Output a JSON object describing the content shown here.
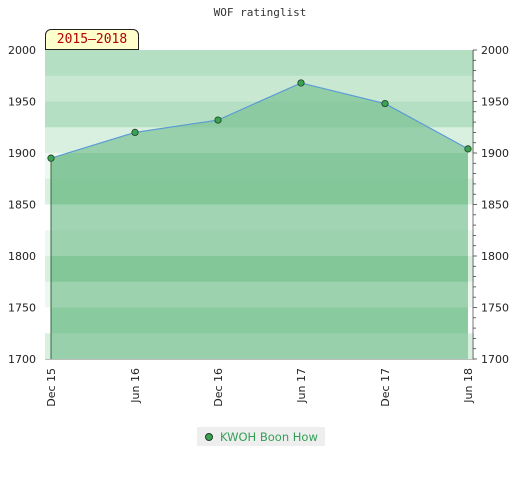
{
  "chart_data": {
    "type": "area",
    "title": "WOF ratinglist",
    "period_label": "2015–2018",
    "categories": [
      "Dec 15",
      "Jun 16",
      "Dec 16",
      "Jun 17",
      "Dec 17",
      "Jun 18"
    ],
    "series": [
      {
        "name": "KWOH Boon How",
        "values": [
          1895,
          1920,
          1932,
          1968,
          1948,
          1904
        ]
      }
    ],
    "ylim": [
      1700,
      2000
    ],
    "yticks": [
      1700,
      1750,
      1800,
      1850,
      1900,
      1950,
      2000
    ],
    "grid": true,
    "legend_position": "bottom",
    "colors": {
      "line": "#5b9bd5",
      "fill": "#7dc494",
      "marker": "#3aa352"
    }
  }
}
